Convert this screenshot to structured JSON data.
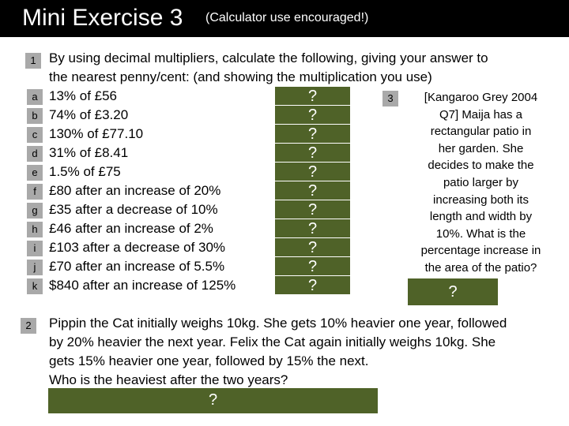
{
  "header": {
    "title": "Mini Exercise 3",
    "subtitle": "(Calculator use encouraged!)"
  },
  "q1": {
    "number": "1",
    "intro_line1": "By using decimal multipliers, calculate the following, giving your answer to",
    "intro_line2": "the nearest penny/cent: (and showing the multiplication you use)",
    "items": [
      {
        "letter": "a",
        "text": "13% of £56",
        "answer": "?"
      },
      {
        "letter": "b",
        "text": "74% of £3.20",
        "answer": "?"
      },
      {
        "letter": "c",
        "text": "130% of £77.10",
        "answer": "?"
      },
      {
        "letter": "d",
        "text": "31% of £8.41",
        "answer": "?"
      },
      {
        "letter": "e",
        "text": "1.5% of £75",
        "answer": "?"
      },
      {
        "letter": "f",
        "text": "£80 after an increase of 20%",
        "answer": "?"
      },
      {
        "letter": "g",
        "text": "£35 after a decrease of 10%",
        "answer": "?"
      },
      {
        "letter": "h",
        "text": "£46 after an increase of 2%",
        "answer": "?"
      },
      {
        "letter": "i",
        "text": "£103 after a decrease of 30%",
        "answer": "?"
      },
      {
        "letter": "j",
        "text": "£70 after an increase of 5.5%",
        "answer": "?"
      },
      {
        "letter": "k",
        "text": "$840 after an increase of 125%",
        "answer": "?"
      }
    ]
  },
  "q3": {
    "number": "3",
    "lines": [
      "[Kangaroo Grey 2004",
      "Q7] Maija has a",
      "rectangular patio in",
      "her garden. She",
      "decides to make the",
      "patio larger by",
      "increasing both its",
      "length and width by",
      "10%. What is the",
      "percentage increase in",
      "the area of the patio?"
    ],
    "answer": "?"
  },
  "q2": {
    "number": "2",
    "lines": [
      "Pippin the Cat initially weighs 10kg. She gets 10% heavier one year, followed",
      "by 20% heavier the next year. Felix the Cat again initially weighs 10kg. She",
      "gets 15% heavier one year, followed by 15% the next.",
      "Who is the heaviest after the two years?"
    ],
    "answer": "?"
  },
  "colors": {
    "title_bar": "#000000",
    "badge": "#a9a9a9",
    "answer_box": "#4f6228"
  }
}
